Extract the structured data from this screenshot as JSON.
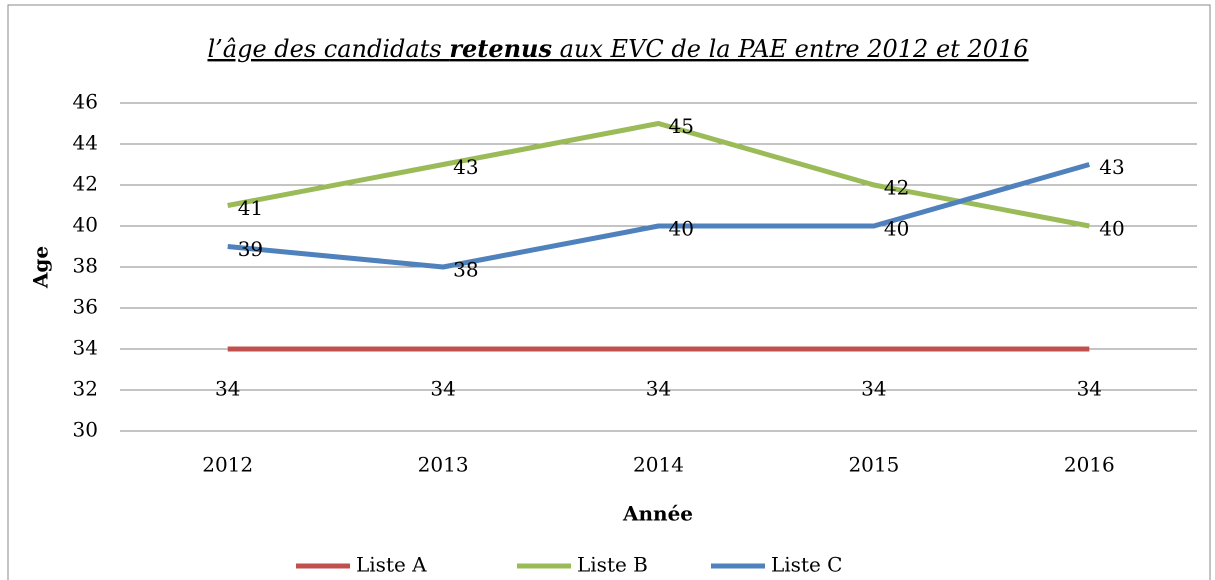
{
  "chart_data": {
    "type": "line",
    "title_parts": [
      "l’âge des candidats ",
      "retenus",
      " aux EVC de la PAE entre 2012 et 2016"
    ],
    "x_label": "Année",
    "y_label": "Age",
    "categories": [
      "2012",
      "2013",
      "2014",
      "2015",
      "2016"
    ],
    "series": [
      {
        "name": "Liste A",
        "color": "#c0504d",
        "values": [
          34,
          34,
          34,
          34,
          34
        ]
      },
      {
        "name": "Liste B",
        "color": "#9bbb59",
        "values": [
          41,
          43,
          45,
          42,
          40
        ]
      },
      {
        "name": "Liste C",
        "color": "#4f81bd",
        "values": [
          39,
          38,
          40,
          40,
          43
        ]
      }
    ],
    "ylim": [
      30,
      46
    ],
    "yticks": [
      30,
      32,
      34,
      36,
      38,
      40,
      42,
      44,
      46
    ],
    "grid": true,
    "legend": "bottom"
  }
}
